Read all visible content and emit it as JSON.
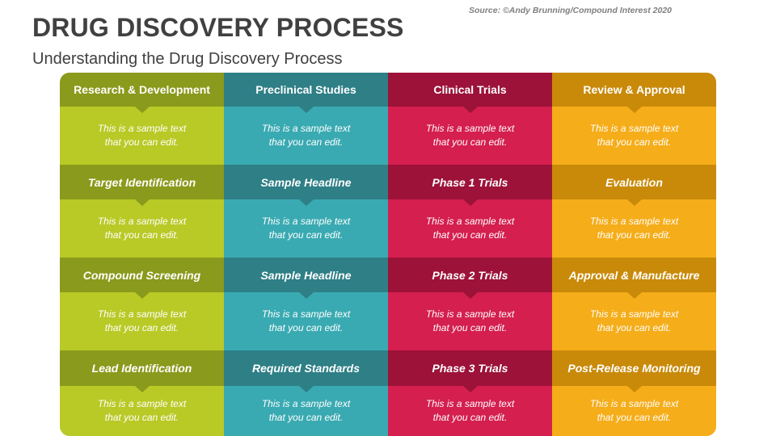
{
  "title": "DRUG DISCOVERY PROCESS",
  "subtitle": "Understanding the Drug Discovery Process",
  "source": "Source: ©Andy Brunning/Compound Interest 2020",
  "colors": {
    "col1_header": "#8a9a1c",
    "col1_body": "#b9c926",
    "col2_header": "#2e7f86",
    "col2_body": "#3aaab2",
    "col3_header": "#9c1238",
    "col3_body": "#d41f4f",
    "col4_header": "#c98a0a",
    "col4_body": "#f5ad1a"
  },
  "columns": [
    {
      "header": "Research & Development",
      "rows": [
        {
          "text1": "This is a sample text",
          "text2": "that you can edit."
        },
        {
          "headline": "Target Identification",
          "text1": "This is a sample text",
          "text2": "that you can edit."
        },
        {
          "headline": "Compound Screening",
          "text1": "This is a sample text",
          "text2": "that you can edit."
        },
        {
          "headline": "Lead Identification",
          "text1": "This is a sample text",
          "text2": "that you can edit."
        }
      ]
    },
    {
      "header": "Preclinical Studies",
      "rows": [
        {
          "text1": "This is a sample text",
          "text2": "that you can edit."
        },
        {
          "headline": "Sample Headline",
          "text1": "This is a sample text",
          "text2": "that you can edit."
        },
        {
          "headline": "Sample Headline",
          "text1": "This is a sample text",
          "text2": "that you can edit."
        },
        {
          "headline": "Required Standards",
          "text1": "This is a sample text",
          "text2": "that you can edit."
        }
      ]
    },
    {
      "header": "Clinical Trials",
      "rows": [
        {
          "text1": "This is a sample text",
          "text2": "that you can edit."
        },
        {
          "headline": "Phase 1 Trials",
          "text1": "This is a sample text",
          "text2": "that you can edit."
        },
        {
          "headline": "Phase 2 Trials",
          "text1": "This is a sample text",
          "text2": "that you can edit."
        },
        {
          "headline": "Phase 3 Trials",
          "text1": "This is a sample text",
          "text2": "that you can edit."
        }
      ]
    },
    {
      "header": "Review & Approval",
      "rows": [
        {
          "text1": "This is a sample text",
          "text2": "that you can edit."
        },
        {
          "headline": "Evaluation",
          "text1": "This is a sample text",
          "text2": "that you can edit."
        },
        {
          "headline": "Approval & Manufacture",
          "text1": "This is a sample text",
          "text2": "that you can edit."
        },
        {
          "headline": "Post-Release Monitoring",
          "text1": "This is a sample text",
          "text2": "that you can edit."
        }
      ]
    }
  ]
}
